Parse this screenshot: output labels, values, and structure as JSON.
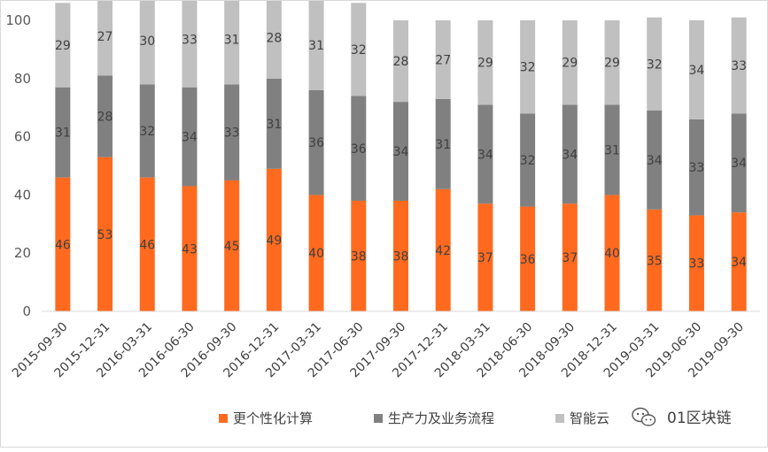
{
  "chart_data": {
    "type": "bar",
    "stacked": true,
    "categories": [
      "2015-09-30",
      "2015-12-31",
      "2016-03-31",
      "2016-06-30",
      "2016-09-30",
      "2016-12-31",
      "2017-03-31",
      "2017-06-30",
      "2017-09-30",
      "2017-12-31",
      "2018-03-31",
      "2018-06-30",
      "2018-09-30",
      "2018-12-31",
      "2019-03-31",
      "2019-06-30",
      "2019-09-30"
    ],
    "series": [
      {
        "name": "更个性化计算",
        "color": "#ff6a1f",
        "values": [
          46,
          53,
          46,
          43,
          45,
          49,
          40,
          38,
          38,
          42,
          37,
          36,
          37,
          40,
          35,
          33,
          34
        ]
      },
      {
        "name": "生产力及业务流程",
        "color": "#808080",
        "values": [
          31,
          28,
          32,
          34,
          33,
          31,
          36,
          36,
          34,
          31,
          34,
          32,
          34,
          31,
          34,
          33,
          34
        ]
      },
      {
        "name": "智能云",
        "color": "#c0c0c0",
        "values": [
          29,
          27,
          30,
          33,
          31,
          28,
          31,
          32,
          28,
          27,
          29,
          32,
          29,
          29,
          32,
          34,
          33
        ]
      }
    ],
    "ylim": [
      0,
      100
    ],
    "yticks": [
      0,
      20,
      40,
      60,
      80,
      100
    ],
    "grid": false,
    "legend_position": "bottom-center"
  },
  "watermark": {
    "icon": "wechat-icon",
    "text": "01区块链"
  }
}
